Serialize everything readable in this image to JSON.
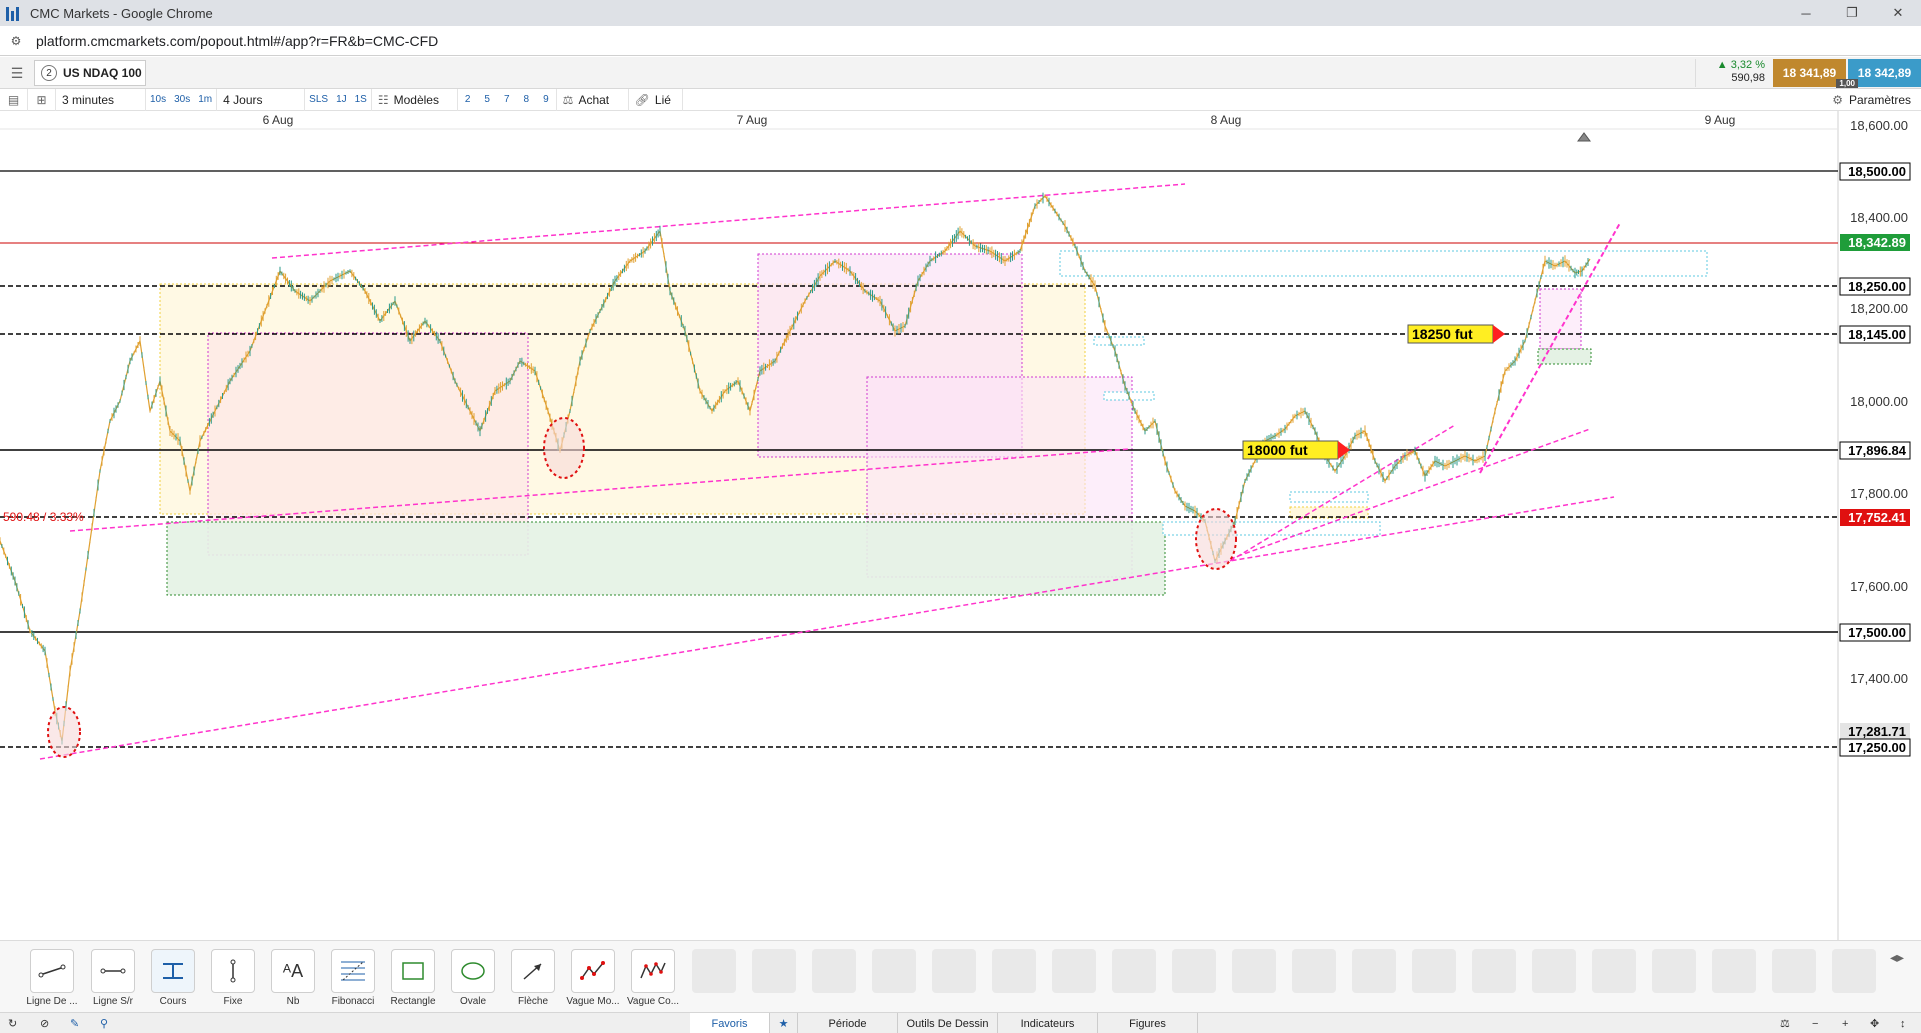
{
  "browser": {
    "window_title": "CMC Markets - Google Chrome",
    "url": "platform.cmcmarkets.com/popout.html#/app?r=FR&b=CMC-CFD"
  },
  "instrument": {
    "tab_number": "2",
    "name": "US NDAQ 100",
    "change_pct": "▲ 3,32 %",
    "change_pts": "590,98",
    "sell_price": "18 341,89",
    "buy_price": "18 342,89",
    "spread": "1,00"
  },
  "toolbar": {
    "interval": "3 minutes",
    "intervals": [
      "10s",
      "30s",
      "1m"
    ],
    "period": "4 Jours",
    "periods": [
      "SLS",
      "1J",
      "1S"
    ],
    "templates_label": "Modèles",
    "template_numbers": [
      "2",
      "5",
      "7",
      "8",
      "9"
    ],
    "buy_label": "Achat",
    "link_label": "Lié",
    "settings_label": "Paramètres"
  },
  "chart": {
    "date_labels": [
      "6 Aug",
      "7 Aug",
      "8 Aug",
      "9 Aug"
    ],
    "price_ticks": [
      "18,600.00",
      "18,400.00",
      "18,200.00",
      "18,000.00",
      "17,800.00",
      "17,600.00",
      "17,400.00"
    ],
    "level_labels": {
      "l18500": "18,500.00",
      "lcurrent": "18,342.89",
      "l18250": "18,250.00",
      "l18145": "18,145.00",
      "l17896": "17,896.84",
      "l17752": "17,752.41",
      "l17500": "17,500.00",
      "l17281": "17,281.71",
      "l17250": "17,250.00"
    },
    "change_annotation": "590.48 / 3.33%",
    "callouts": {
      "c18250": "18250 fut",
      "c18000": "18000 fut"
    },
    "colors": {
      "candles": "#e0a030",
      "candles_up": "#2a9a8a",
      "current_line": "#cc0000",
      "trendlines": "#ff33cc",
      "current_label": "#1f9d3a",
      "low_label": "#e01010"
    }
  },
  "drawing_tools": [
    {
      "label": "Ligne De ...",
      "icon": "line-icon"
    },
    {
      "label": "Ligne S/r",
      "icon": "sr-line-icon"
    },
    {
      "label": "Cours",
      "icon": "price-icon"
    },
    {
      "label": "Fixe",
      "icon": "fixed-icon"
    },
    {
      "label": "Nb",
      "icon": "text-icon"
    },
    {
      "label": "Fibonacci",
      "icon": "fibonacci-icon"
    },
    {
      "label": "Rectangle",
      "icon": "rectangle-icon"
    },
    {
      "label": "Ovale",
      "icon": "oval-icon"
    },
    {
      "label": "Flèche",
      "icon": "arrow-icon"
    },
    {
      "label": "Vague Mo...",
      "icon": "wave-motive-icon"
    },
    {
      "label": "Vague Co...",
      "icon": "wave-corrective-icon"
    }
  ],
  "bottom_tabs": {
    "favorites": "Favoris",
    "period": "Période",
    "drawing": "Outils De Dessin",
    "indicators": "Indicateurs",
    "figures": "Figures"
  }
}
